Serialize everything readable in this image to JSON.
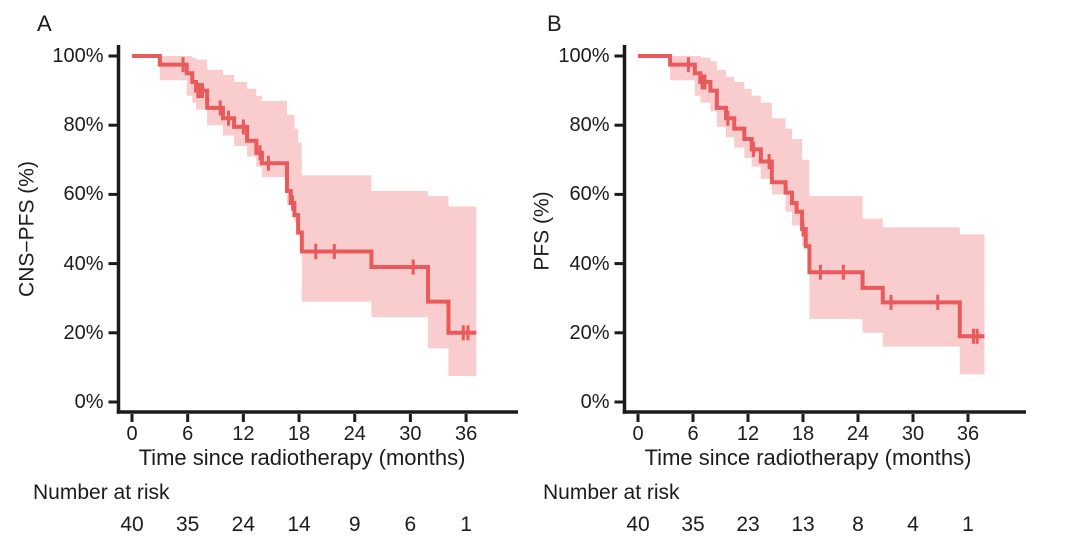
{
  "figure": {
    "colors": {
      "curve": "#e85a5c",
      "confidence_band": "#f9cdcd",
      "axis": "#1b1b1b",
      "text": "#1c1c1c",
      "background": "#ffffff"
    }
  },
  "chart_data": [
    {
      "type": "line",
      "subtype": "kaplan-meier-step",
      "panel_label": "A",
      "title": "",
      "ylabel": "CNS−PFS (%)",
      "xlabel": "Time since radiotherapy (months)",
      "x_ticks": [
        0,
        6,
        12,
        18,
        24,
        30,
        36
      ],
      "y_ticks": [
        "100%",
        "80%",
        "60%",
        "40%",
        "20%",
        "0%"
      ],
      "y_tick_values": [
        100,
        80,
        60,
        40,
        20,
        0
      ],
      "xlim_months": [
        0,
        41
      ],
      "ylim_pct": [
        0,
        100
      ],
      "grid": false,
      "legend": false,
      "curve_color": "#e85a5c",
      "ci_color": "#f9cdcd",
      "survival_steps_pct": [
        [
          0,
          100
        ],
        [
          3.0,
          97.5
        ],
        [
          5.9,
          95
        ],
        [
          6.5,
          92.5
        ],
        [
          6.9,
          90
        ],
        [
          8.1,
          85
        ],
        [
          9.8,
          82
        ],
        [
          11.0,
          79.5
        ],
        [
          12.4,
          75.5
        ],
        [
          13.4,
          72
        ],
        [
          14.0,
          69
        ],
        [
          16.7,
          61
        ],
        [
          17.1,
          57.5
        ],
        [
          17.5,
          54
        ],
        [
          17.9,
          49
        ],
        [
          18.3,
          43.5
        ],
        [
          25.8,
          39
        ],
        [
          31.9,
          29
        ],
        [
          34.1,
          20
        ]
      ],
      "curve_end_month": 37.1,
      "censor_marks_pct": [
        [
          5.5,
          97.5
        ],
        [
          7.1,
          90
        ],
        [
          7.3,
          90
        ],
        [
          7.6,
          90
        ],
        [
          9.5,
          85
        ],
        [
          10.4,
          82
        ],
        [
          12.0,
          79.5
        ],
        [
          13.8,
          72
        ],
        [
          14.7,
          69
        ],
        [
          17.3,
          57.5
        ],
        [
          19.8,
          43.5
        ],
        [
          21.8,
          43.5
        ],
        [
          30.3,
          39
        ],
        [
          35.7,
          20
        ],
        [
          36.2,
          20
        ]
      ],
      "ci_steps_upper_lower_pct": [
        [
          3.0,
          100,
          93
        ],
        [
          5.9,
          100,
          88.5
        ],
        [
          6.5,
          99.5,
          86.5
        ],
        [
          6.9,
          99,
          84.5
        ],
        [
          8.1,
          96,
          80
        ],
        [
          9.8,
          94.5,
          77
        ],
        [
          11.0,
          92.5,
          74
        ],
        [
          12.4,
          90.5,
          71
        ],
        [
          13.4,
          88.5,
          68
        ],
        [
          14.0,
          87,
          65
        ],
        [
          16.7,
          83,
          57
        ],
        [
          17.5,
          79,
          52
        ],
        [
          17.9,
          75,
          48
        ],
        [
          18.3,
          65.5,
          29
        ],
        [
          25.8,
          61,
          24.5
        ],
        [
          31.9,
          59.5,
          15.5
        ],
        [
          34.1,
          56.5,
          7.5
        ]
      ],
      "risk_table": {
        "label": "Number at risk",
        "times": [
          0,
          6,
          12,
          18,
          24,
          30,
          36
        ],
        "values": [
          40,
          35,
          24,
          14,
          9,
          6,
          1
        ]
      }
    },
    {
      "type": "line",
      "subtype": "kaplan-meier-step",
      "panel_label": "B",
      "title": "",
      "ylabel": "PFS (%)",
      "xlabel": "Time since radiotherapy (months)",
      "x_ticks": [
        0,
        6,
        12,
        18,
        24,
        30,
        36
      ],
      "y_ticks": [
        "100%",
        "80%",
        "60%",
        "40%",
        "20%",
        "0%"
      ],
      "y_tick_values": [
        100,
        80,
        60,
        40,
        20,
        0
      ],
      "xlim_months": [
        0,
        41
      ],
      "ylim_pct": [
        0,
        100
      ],
      "grid": false,
      "legend": false,
      "curve_color": "#e85a5c",
      "ci_color": "#f9cdcd",
      "survival_steps_pct": [
        [
          0,
          100
        ],
        [
          3.5,
          97.5
        ],
        [
          6.2,
          95
        ],
        [
          6.8,
          92.5
        ],
        [
          7.9,
          90
        ],
        [
          8.6,
          85
        ],
        [
          9.6,
          82
        ],
        [
          10.5,
          79
        ],
        [
          11.6,
          76
        ],
        [
          12.4,
          73
        ],
        [
          13.4,
          69.5
        ],
        [
          14.6,
          63.5
        ],
        [
          16.1,
          60.5
        ],
        [
          16.8,
          57.5
        ],
        [
          17.3,
          55
        ],
        [
          17.9,
          50
        ],
        [
          18.3,
          45
        ],
        [
          18.7,
          37.5
        ],
        [
          24.5,
          33
        ],
        [
          26.7,
          28.8
        ],
        [
          35.1,
          19
        ]
      ],
      "curve_end_month": 37.8,
      "censor_marks_pct": [
        [
          5.5,
          97.5
        ],
        [
          7.0,
          92.5
        ],
        [
          7.3,
          92.5
        ],
        [
          9.8,
          82
        ],
        [
          12.6,
          73
        ],
        [
          14.3,
          69.5
        ],
        [
          18.0,
          50
        ],
        [
          19.9,
          37.5
        ],
        [
          22.4,
          37.5
        ],
        [
          27.6,
          28.8
        ],
        [
          32.7,
          28.8
        ],
        [
          36.6,
          19
        ],
        [
          37.0,
          19
        ]
      ],
      "ci_steps_upper_lower_pct": [
        [
          3.5,
          100,
          93
        ],
        [
          6.2,
          100,
          88.5
        ],
        [
          6.8,
          99.5,
          86.5
        ],
        [
          7.9,
          98.5,
          84
        ],
        [
          8.6,
          96,
          79.5
        ],
        [
          9.6,
          94,
          76.5
        ],
        [
          10.5,
          92.5,
          73.5
        ],
        [
          11.6,
          90.5,
          70.5
        ],
        [
          12.4,
          88.5,
          68
        ],
        [
          13.4,
          86.5,
          64.5
        ],
        [
          14.6,
          82,
          60
        ],
        [
          16.1,
          79,
          55
        ],
        [
          16.8,
          76,
          51
        ],
        [
          17.9,
          70,
          45
        ],
        [
          18.7,
          59.5,
          24
        ],
        [
          24.5,
          53,
          20
        ],
        [
          26.7,
          50.5,
          16
        ],
        [
          35.1,
          48.5,
          8
        ]
      ],
      "risk_table": {
        "label": "Number at risk",
        "times": [
          0,
          6,
          12,
          18,
          24,
          30,
          36
        ],
        "values": [
          40,
          35,
          23,
          13,
          8,
          4,
          1
        ]
      }
    }
  ]
}
